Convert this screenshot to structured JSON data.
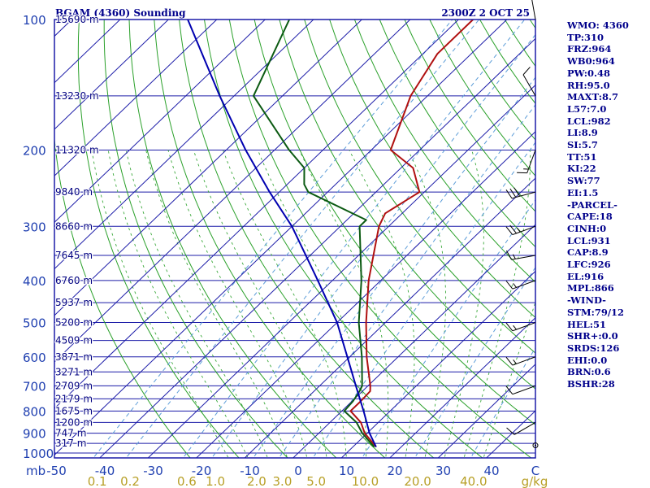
{
  "chart_data": {
    "type": "skew-t",
    "title": "BGAM (4360) Sounding",
    "valid_time": "2300Z  2 OCT 25",
    "y_axis_unit": "mb",
    "x_axis_unit": "C",
    "mix_unit": "g/kg",
    "pressure_levels": [
      100,
      200,
      300,
      400,
      500,
      600,
      700,
      800,
      900,
      1000
    ],
    "temperature_ticks": [
      -50,
      -40,
      -30,
      -20,
      -10,
      0,
      10,
      20,
      30,
      40
    ],
    "mixing_ratio_labels": [
      "0.1",
      "0.2",
      "0.6",
      "1.0",
      "2.0",
      "3.0",
      "5.0",
      "10.0",
      "20.0",
      "40.0"
    ],
    "mixing_ratio_values": [
      0.1,
      0.2,
      0.6,
      1.0,
      2.0,
      3.0,
      5.0,
      10.0,
      20.0,
      40.0
    ],
    "heights": [
      {
        "p": 100,
        "label": "15690 m"
      },
      {
        "p": 150,
        "label": "13230 m"
      },
      {
        "p": 200,
        "label": "11320 m"
      },
      {
        "p": 250,
        "label": "9840 m"
      },
      {
        "p": 300,
        "label": "8660 m"
      },
      {
        "p": 350,
        "label": "7645 m"
      },
      {
        "p": 400,
        "label": "6760 m"
      },
      {
        "p": 450,
        "label": "5937 m"
      },
      {
        "p": 500,
        "label": "5200 m"
      },
      {
        "p": 550,
        "label": "4509 m"
      },
      {
        "p": 600,
        "label": "3871 m"
      },
      {
        "p": 650,
        "label": "3271 m"
      },
      {
        "p": 700,
        "label": "2709 m"
      },
      {
        "p": 750,
        "label": "2179 m"
      },
      {
        "p": 800,
        "label": "1675 m"
      },
      {
        "p": 850,
        "label": "1200 m"
      },
      {
        "p": 900,
        "label": "747 m"
      },
      {
        "p": 950,
        "label": "317 m"
      }
    ],
    "series": [
      {
        "name": "Temperature",
        "color": "#b01010",
        "points": [
          {
            "p": 968,
            "t": 14.8
          },
          {
            "p": 900,
            "t": 9.5
          },
          {
            "p": 850,
            "t": 6.4
          },
          {
            "p": 800,
            "t": 1.8
          },
          {
            "p": 760,
            "t": 1.8
          },
          {
            "p": 720,
            "t": 1.6
          },
          {
            "p": 700,
            "t": 0.5
          },
          {
            "p": 600,
            "t": -6.5
          },
          {
            "p": 500,
            "t": -14.0
          },
          {
            "p": 400,
            "t": -22.5
          },
          {
            "p": 300,
            "t": -32.0
          },
          {
            "p": 280,
            "t": -33.5
          },
          {
            "p": 250,
            "t": -31.0
          },
          {
            "p": 220,
            "t": -37.5
          },
          {
            "p": 200,
            "t": -46.0
          },
          {
            "p": 150,
            "t": -53.5
          },
          {
            "p": 120,
            "t": -57.0
          },
          {
            "p": 100,
            "t": -57.0
          }
        ]
      },
      {
        "name": "Dewpoint",
        "color": "#0b5a12",
        "points": [
          {
            "p": 968,
            "t": 14.4
          },
          {
            "p": 900,
            "t": 9.0
          },
          {
            "p": 850,
            "t": 5.5
          },
          {
            "p": 800,
            "t": 0.5
          },
          {
            "p": 760,
            "t": 0.2
          },
          {
            "p": 720,
            "t": -0.6
          },
          {
            "p": 700,
            "t": -1.2
          },
          {
            "p": 600,
            "t": -7.5
          },
          {
            "p": 500,
            "t": -15.5
          },
          {
            "p": 400,
            "t": -24.0
          },
          {
            "p": 300,
            "t": -36.0
          },
          {
            "p": 290,
            "t": -36.0
          },
          {
            "p": 250,
            "t": -54.0
          },
          {
            "p": 240,
            "t": -56.5
          },
          {
            "p": 220,
            "t": -60.0
          },
          {
            "p": 200,
            "t": -67.0
          },
          {
            "p": 150,
            "t": -86.0
          },
          {
            "p": 100,
            "t": -95.0
          }
        ]
      },
      {
        "name": "Parcel",
        "color": "#0000b0",
        "points": [
          {
            "p": 968,
            "t": 14.8
          },
          {
            "p": 931,
            "t": 12.5
          },
          {
            "p": 900,
            "t": 10.5
          },
          {
            "p": 850,
            "t": 7.6
          },
          {
            "p": 800,
            "t": 4.5
          },
          {
            "p": 700,
            "t": -2.5
          },
          {
            "p": 600,
            "t": -10.5
          },
          {
            "p": 500,
            "t": -20.0
          },
          {
            "p": 400,
            "t": -33.0
          },
          {
            "p": 300,
            "t": -50.0
          },
          {
            "p": 250,
            "t": -62.0
          },
          {
            "p": 200,
            "t": -76.0
          },
          {
            "p": 150,
            "t": -93.0
          },
          {
            "p": 100,
            "t": -116.0
          }
        ]
      }
    ],
    "winds": [
      {
        "p": 960,
        "speed": 0,
        "dir": 0
      },
      {
        "p": 850,
        "speed": 10,
        "dir": 240
      },
      {
        "p": 700,
        "speed": 10,
        "dir": 250
      },
      {
        "p": 600,
        "speed": 15,
        "dir": 250
      },
      {
        "p": 500,
        "speed": 15,
        "dir": 250
      },
      {
        "p": 400,
        "speed": 15,
        "dir": 250
      },
      {
        "p": 350,
        "speed": 15,
        "dir": 260
      },
      {
        "p": 300,
        "speed": 25,
        "dir": 250
      },
      {
        "p": 250,
        "speed": 30,
        "dir": 255
      },
      {
        "p": 200,
        "speed": 15,
        "dir": 200
      },
      {
        "p": 150,
        "speed": 10,
        "dir": 330
      },
      {
        "p": 100,
        "speed": 5,
        "dir": 350
      }
    ]
  },
  "stats": [
    "WMO: 4360",
    "TP:310",
    "FRZ:964",
    "WB0:964",
    "PW:0.48",
    "RH:95.0",
    "MAXT:8.7",
    "L57:7.0",
    "LCL:982",
    "LI:8.9",
    "SI:5.7",
    "TT:51",
    "KI:22",
    "SW:77",
    "EI:1.5",
    "-PARCEL-",
    "CAPE:18",
    "CINH:0",
    "LCL:931",
    "CAP:8.9",
    "LFC:926",
    "EL:916",
    "MPL:866",
    "-WIND-",
    "STM:79/12",
    "HEL:51",
    "SHR+:0.0",
    "SRDS:126",
    "EHI:0.0",
    "BRN:0.6",
    "BSHR:28"
  ],
  "colors": {
    "frame": "#1c1ca8",
    "isobar": "#1c1ca8",
    "isotherm": "#1c1ca8",
    "dry_adiabat": "#2aa02a",
    "moist_adiabat": "#3aa83a",
    "mixing_ratio": "#5b9cd8",
    "label_blue": "#1f3fb0",
    "mix_label": "#b8a028",
    "stats_text": "#00008b",
    "wind_barb": "#000000"
  }
}
